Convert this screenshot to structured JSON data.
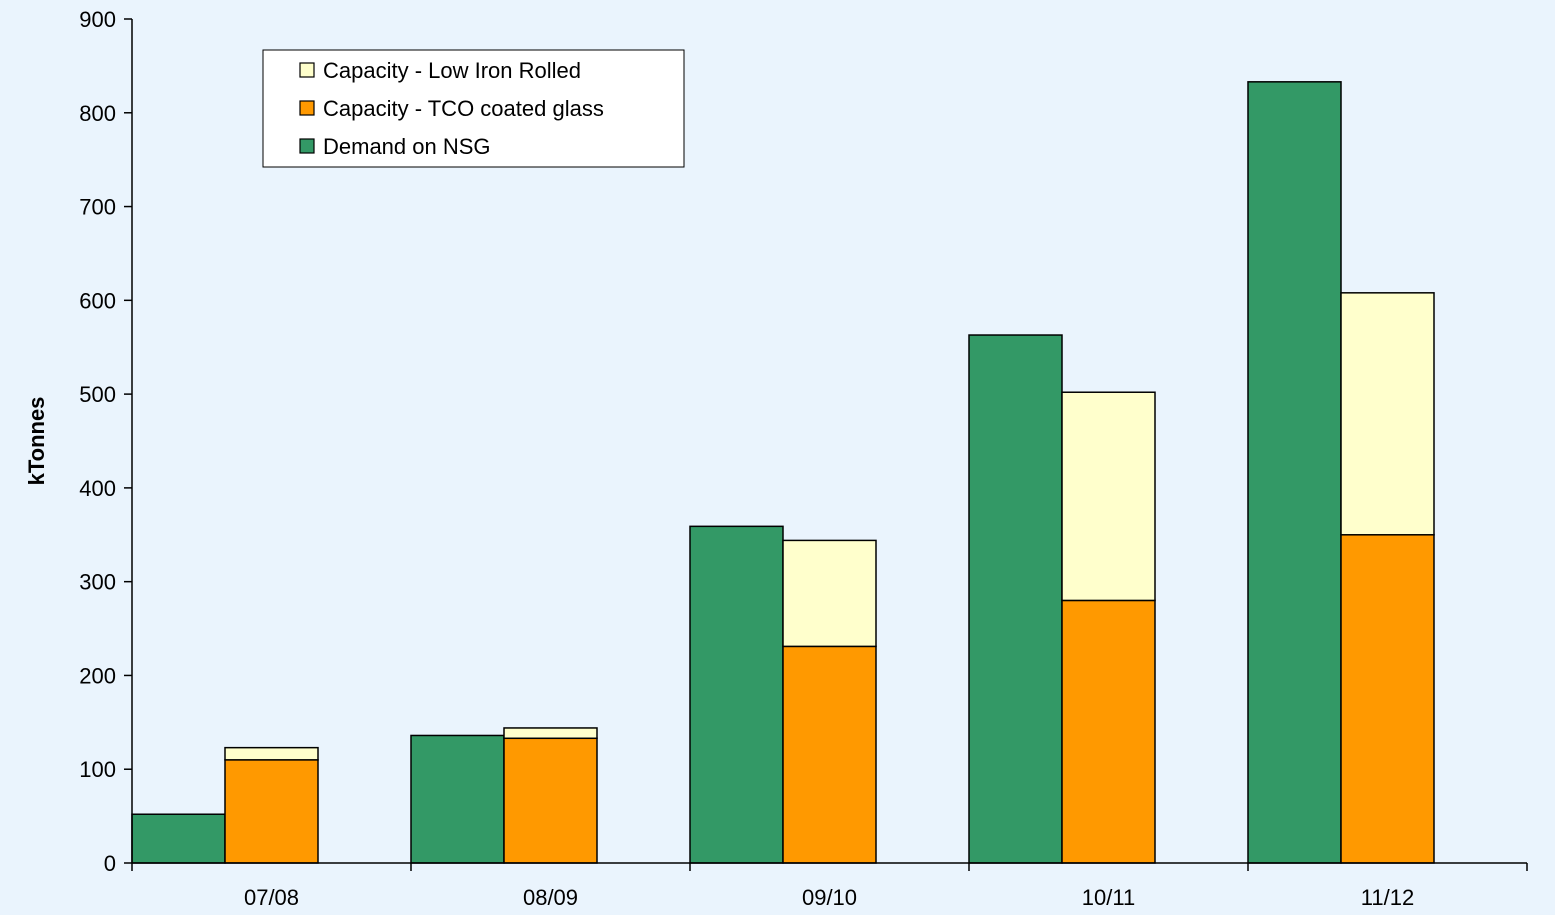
{
  "chart_data": {
    "type": "bar",
    "title": "",
    "xlabel": "",
    "ylabel": "kTonnes",
    "ylim": [
      0,
      900
    ],
    "yticks": [
      0,
      100,
      200,
      300,
      400,
      500,
      600,
      700,
      800,
      900
    ],
    "categories": [
      "07/08",
      "08/09",
      "09/10",
      "10/11",
      "11/12"
    ],
    "grid": false,
    "legend_position": "top-left",
    "series": [
      {
        "name": "Demand on NSG",
        "stack": "demand",
        "color": "#339966",
        "values": [
          52,
          136,
          359,
          563,
          833
        ]
      },
      {
        "name": "Capacity - TCO coated glass",
        "stack": "capacity",
        "color": "#FF9900",
        "values": [
          110,
          133,
          231,
          280,
          350
        ]
      },
      {
        "name": "Capacity - Low Iron Rolled",
        "stack": "capacity",
        "color": "#FFFFCC",
        "values": [
          13,
          11,
          113,
          222,
          258
        ]
      }
    ],
    "legend_order": [
      "Capacity - Low Iron Rolled",
      "Capacity - TCO coated glass",
      "Demand on NSG"
    ]
  },
  "colors": {
    "background": "#EAF4FD",
    "legend_bg": "#FFFFFF",
    "outline": "#000000"
  }
}
